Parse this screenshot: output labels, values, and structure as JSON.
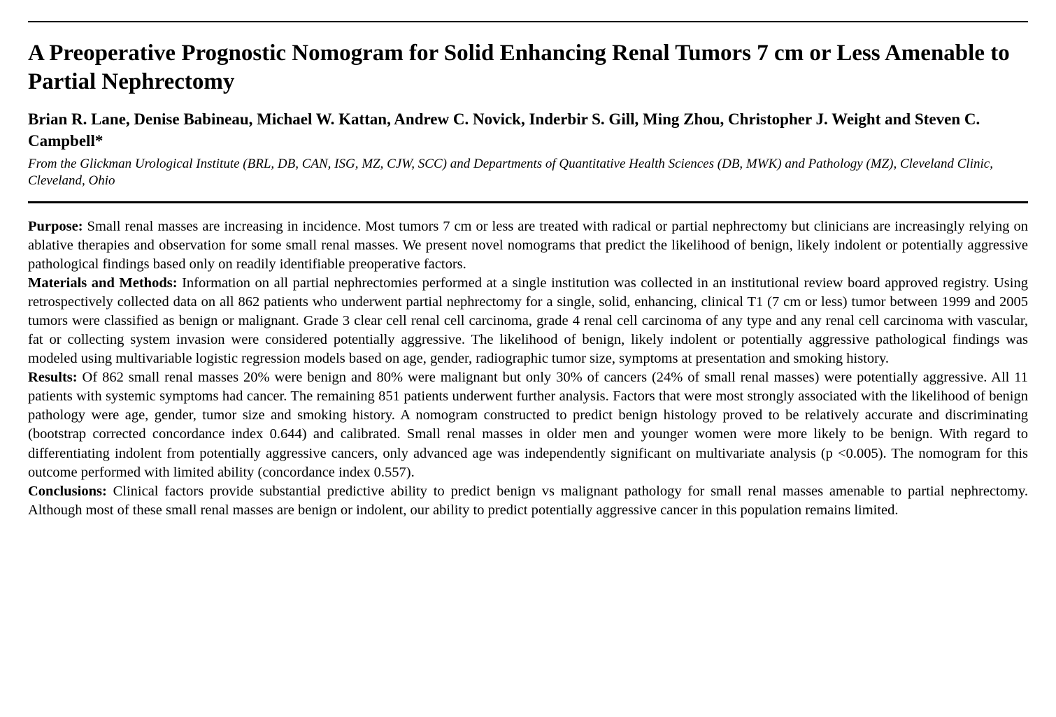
{
  "title": "A Preoperative Prognostic Nomogram for Solid Enhancing Renal Tumors 7 cm or Less Amenable to Partial Nephrectomy",
  "authors": "Brian R. Lane, Denise Babineau, Michael W. Kattan, Andrew C. Novick, Inderbir S. Gill, Ming Zhou, Christopher J. Weight and Steven C. Campbell*",
  "affiliation": "From the Glickman Urological Institute (BRL, DB, CAN, ISG, MZ, CJW, SCC) and Departments of Quantitative Health Sciences (DB, MWK) and Pathology (MZ), Cleveland Clinic, Cleveland, Ohio",
  "abstract": {
    "purpose_label": "Purpose:",
    "purpose_text": " Small renal masses are increasing in incidence. Most tumors 7 cm or less are treated with radical or partial nephrectomy but clinicians are increasingly relying on ablative therapies and observation for some small renal masses. We present novel nomograms that predict the likelihood of benign, likely indolent or potentially aggressive pathological findings based only on readily identifiable preoperative factors.",
    "methods_label": "Materials and Methods:",
    "methods_text": " Information on all partial nephrectomies performed at a single institution was collected in an institutional review board approved registry. Using retrospectively collected data on all 862 patients who underwent partial nephrectomy for a single, solid, enhancing, clinical T1 (7 cm or less) tumor between 1999 and 2005 tumors were classified as benign or malignant. Grade 3 clear cell renal cell carcinoma, grade 4 renal cell carcinoma of any type and any renal cell carcinoma with vascular, fat or collecting system invasion were considered potentially aggressive. The likelihood of benign, likely indolent or potentially aggressive pathological findings was modeled using multivariable logistic regression models based on age, gender, radiographic tumor size, symptoms at presentation and smoking history.",
    "results_label": "Results:",
    "results_text": " Of 862 small renal masses 20% were benign and 80% were malignant but only 30% of cancers (24% of small renal masses) were potentially aggressive. All 11 patients with systemic symptoms had cancer. The remaining 851 patients underwent further analysis. Factors that were most strongly associated with the likelihood of benign pathology were age, gender, tumor size and smoking history. A nomogram constructed to predict benign histology proved to be relatively accurate and discriminating (bootstrap corrected concordance index 0.644) and calibrated. Small renal masses in older men and younger women were more likely to be benign. With regard to differentiating indolent from potentially aggressive cancers, only advanced age was independently significant on multivariate analysis (p <0.005). The nomogram for this outcome performed with limited ability (concordance index 0.557).",
    "conclusions_label": "Conclusions:",
    "conclusions_text": " Clinical factors provide substantial predictive ability to predict benign vs malignant pathology for small renal masses amenable to partial nephrectomy. Although most of these small renal masses are benign or indolent, our ability to predict potentially aggressive cancer in this population remains limited."
  }
}
